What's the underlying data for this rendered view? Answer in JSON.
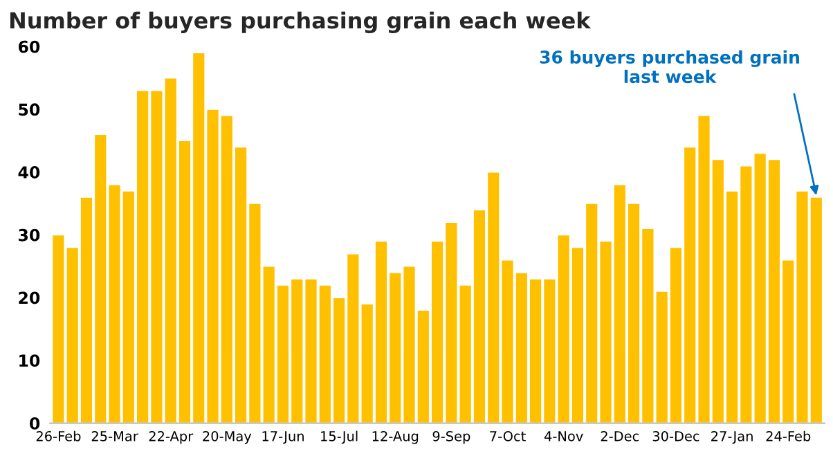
{
  "chart_data": {
    "type": "bar",
    "title": "Number of buyers purchasing grain each week",
    "categories": [
      "26-Feb",
      null,
      null,
      null,
      "25-Mar",
      null,
      null,
      null,
      "22-Apr",
      null,
      null,
      null,
      "20-May",
      null,
      null,
      null,
      "17-Jun",
      null,
      null,
      null,
      "15-Jul",
      null,
      null,
      null,
      "12-Aug",
      null,
      null,
      null,
      "9-Sep",
      null,
      null,
      null,
      "7-Oct",
      null,
      null,
      null,
      "4-Nov",
      null,
      null,
      null,
      "2-Dec",
      null,
      null,
      null,
      "30-Dec",
      null,
      null,
      null,
      "27-Jan",
      null,
      null,
      null,
      "24-Feb",
      null,
      null
    ],
    "values": [
      30,
      28,
      36,
      46,
      38,
      37,
      53,
      53,
      55,
      45,
      59,
      50,
      49,
      44,
      35,
      25,
      22,
      23,
      23,
      22,
      20,
      27,
      19,
      29,
      24,
      25,
      18,
      29,
      32,
      22,
      34,
      40,
      26,
      24,
      23,
      23,
      30,
      28,
      35,
      29,
      38,
      35,
      31,
      21,
      28,
      44,
      49,
      42,
      37,
      41,
      43,
      42,
      26,
      37,
      36
    ],
    "color": "#ffc000",
    "ylim": [
      0,
      60
    ],
    "yticks": [
      0,
      10,
      20,
      30,
      40,
      50,
      60
    ],
    "grid": false,
    "annotations": [
      "36 buyers purchased grain\nlast week"
    ]
  }
}
